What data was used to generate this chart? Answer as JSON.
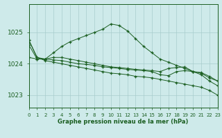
{
  "title": "Graphe pression niveau de la mer (hPa)",
  "background_color": "#ceeaea",
  "grid_color": "#a8cccc",
  "line_color": "#1a5e20",
  "x_ticks": [
    0,
    1,
    2,
    3,
    4,
    5,
    6,
    7,
    8,
    9,
    10,
    11,
    12,
    13,
    14,
    15,
    16,
    17,
    18,
    19,
    20,
    21,
    22,
    23
  ],
  "ylim": [
    1022.6,
    1025.9
  ],
  "yticks": [
    1023,
    1024,
    1025
  ],
  "series": [
    [
      1024.75,
      1024.2,
      1024.15,
      1024.35,
      1024.55,
      1024.7,
      1024.8,
      1024.9,
      1025.0,
      1025.1,
      1025.27,
      1025.22,
      1025.05,
      1024.8,
      1024.55,
      1024.35,
      1024.15,
      1024.05,
      1023.95,
      1023.85,
      1023.75,
      1023.65,
      1023.45,
      1023.3
    ],
    [
      1024.6,
      1024.15,
      1024.15,
      1024.2,
      1024.2,
      1024.15,
      1024.1,
      1024.05,
      1024.0,
      1023.95,
      1023.9,
      1023.88,
      1023.85,
      1023.82,
      1023.8,
      1023.78,
      1023.75,
      1023.85,
      1023.88,
      1023.9,
      1023.75,
      1023.7,
      1023.55,
      1023.45
    ],
    [
      1024.2,
      1024.15,
      1024.15,
      1024.12,
      1024.1,
      1024.05,
      1024.0,
      1023.98,
      1023.95,
      1023.9,
      1023.88,
      1023.85,
      1023.82,
      1023.8,
      1023.78,
      1023.75,
      1023.65,
      1023.62,
      1023.75,
      1023.78,
      1023.75,
      1023.72,
      1023.6,
      1023.45
    ],
    [
      1024.75,
      1024.2,
      1024.1,
      1024.05,
      1024.0,
      1023.95,
      1023.9,
      1023.85,
      1023.8,
      1023.75,
      1023.7,
      1023.68,
      1023.65,
      1023.6,
      1023.58,
      1023.55,
      1023.5,
      1023.45,
      1023.4,
      1023.35,
      1023.3,
      1023.25,
      1023.15,
      1023.0
    ]
  ]
}
